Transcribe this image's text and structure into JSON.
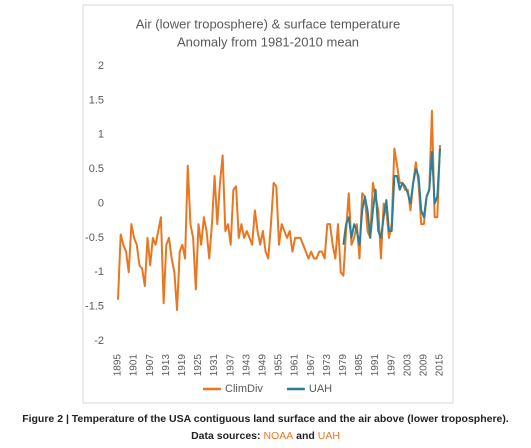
{
  "chart_data": {
    "type": "line",
    "title": "Air (lower troposphere) & surface temperature",
    "subtitle": "Anomaly from 1981-2010 mean",
    "x": [
      1895,
      1896,
      1897,
      1898,
      1899,
      1900,
      1901,
      1902,
      1903,
      1904,
      1905,
      1906,
      1907,
      1908,
      1909,
      1910,
      1911,
      1912,
      1913,
      1914,
      1915,
      1916,
      1917,
      1918,
      1919,
      1920,
      1921,
      1922,
      1923,
      1924,
      1925,
      1926,
      1927,
      1928,
      1929,
      1930,
      1931,
      1932,
      1933,
      1934,
      1935,
      1936,
      1937,
      1938,
      1939,
      1940,
      1941,
      1942,
      1943,
      1944,
      1945,
      1946,
      1947,
      1948,
      1949,
      1950,
      1951,
      1952,
      1953,
      1954,
      1955,
      1956,
      1957,
      1958,
      1959,
      1960,
      1961,
      1962,
      1963,
      1964,
      1965,
      1966,
      1967,
      1968,
      1969,
      1970,
      1971,
      1972,
      1973,
      1974,
      1975,
      1976,
      1977,
      1978,
      1979,
      1980,
      1981,
      1982,
      1983,
      1984,
      1985,
      1986,
      1987,
      1988,
      1989,
      1990,
      1991,
      1992,
      1993,
      1994,
      1995,
      1996,
      1997,
      1998,
      1999,
      2000,
      2001,
      2002,
      2003,
      2004,
      2005,
      2006,
      2007,
      2008,
      2009,
      2010,
      2011,
      2012,
      2013,
      2014,
      2015
    ],
    "series": [
      {
        "name": "ClimDiv",
        "color": "#e87722",
        "values": [
          -1.4,
          -0.45,
          -0.6,
          -0.7,
          -1.0,
          -0.3,
          -0.5,
          -0.6,
          -0.9,
          -0.95,
          -1.2,
          -0.5,
          -0.9,
          -0.5,
          -0.6,
          -0.4,
          -0.2,
          -1.45,
          -0.6,
          -0.5,
          -0.8,
          -1.0,
          -1.55,
          -0.7,
          -0.6,
          -0.8,
          0.55,
          -0.3,
          -0.5,
          -1.25,
          -0.3,
          -0.6,
          -0.2,
          -0.4,
          -0.8,
          -0.3,
          0.4,
          -0.3,
          0.3,
          0.7,
          -0.4,
          -0.3,
          -0.6,
          0.2,
          0.25,
          -0.5,
          -0.3,
          -0.5,
          -0.4,
          -0.5,
          -0.6,
          -0.1,
          -0.4,
          -0.6,
          -0.4,
          -0.7,
          -0.8,
          -0.3,
          0.3,
          0.25,
          -0.6,
          -0.3,
          -0.4,
          -0.5,
          -0.4,
          -0.7,
          -0.5,
          -0.5,
          -0.5,
          -0.6,
          -0.7,
          -0.8,
          -0.7,
          -0.8,
          -0.8,
          -0.7,
          -0.7,
          -0.8,
          -0.3,
          -0.3,
          -0.6,
          -0.8,
          -0.3,
          -1.0,
          -1.05,
          -0.4,
          0.15,
          -0.6,
          -0.5,
          -0.3,
          -0.8,
          0.15,
          0.1,
          -0.4,
          -0.5,
          0.3,
          0.1,
          -0.1,
          -0.8,
          0.0,
          -0.1,
          -0.5,
          -0.3,
          0.8,
          0.55,
          0.3,
          0.3,
          0.2,
          0.2,
          -0.1,
          0.3,
          0.6,
          0.3,
          -0.3,
          -0.3,
          0.1,
          0.2,
          1.35,
          -0.2,
          -0.2,
          0.85
        ]
      },
      {
        "name": "UAH",
        "color": "#2e7f96",
        "values": [
          null,
          null,
          null,
          null,
          null,
          null,
          null,
          null,
          null,
          null,
          null,
          null,
          null,
          null,
          null,
          null,
          null,
          null,
          null,
          null,
          null,
          null,
          null,
          null,
          null,
          null,
          null,
          null,
          null,
          null,
          null,
          null,
          null,
          null,
          null,
          null,
          null,
          null,
          null,
          null,
          null,
          null,
          null,
          null,
          null,
          null,
          null,
          null,
          null,
          null,
          null,
          null,
          null,
          null,
          null,
          null,
          null,
          null,
          null,
          null,
          null,
          null,
          null,
          null,
          null,
          null,
          null,
          null,
          null,
          null,
          null,
          null,
          null,
          null,
          null,
          null,
          null,
          null,
          null,
          null,
          null,
          null,
          null,
          null,
          -0.6,
          -0.3,
          -0.2,
          -0.5,
          -0.3,
          -0.4,
          -0.6,
          -0.1,
          0.1,
          -0.1,
          -0.5,
          -0.1,
          0.2,
          -0.4,
          -0.5,
          -0.2,
          0.05,
          -0.4,
          -0.4,
          0.4,
          0.4,
          0.2,
          0.3,
          0.25,
          0.15,
          0.0,
          0.3,
          0.5,
          0.4,
          -0.1,
          -0.2,
          0.1,
          0.2,
          0.75,
          0.0,
          0.1,
          0.8
        ]
      }
    ],
    "xlim": [
      1895,
      2015
    ],
    "xticks": [
      1895,
      1901,
      1907,
      1913,
      1919,
      1925,
      1931,
      1937,
      1943,
      1949,
      1955,
      1961,
      1967,
      1973,
      1979,
      1985,
      1991,
      1997,
      2003,
      2009,
      2015
    ],
    "ylim": [
      -2,
      2
    ],
    "yticks": [
      2,
      1.5,
      1,
      0.5,
      0,
      -0.5,
      -1,
      -1.5,
      -2
    ],
    "grid": false,
    "legend": "bottom"
  },
  "caption": {
    "text": "Figure 2 | Temperature of the USA contiguous land surface and the air above (lower troposphere).",
    "sources_label": "Data sources:",
    "sources": [
      "NOAA",
      "UAH"
    ],
    "joiner": "and"
  }
}
